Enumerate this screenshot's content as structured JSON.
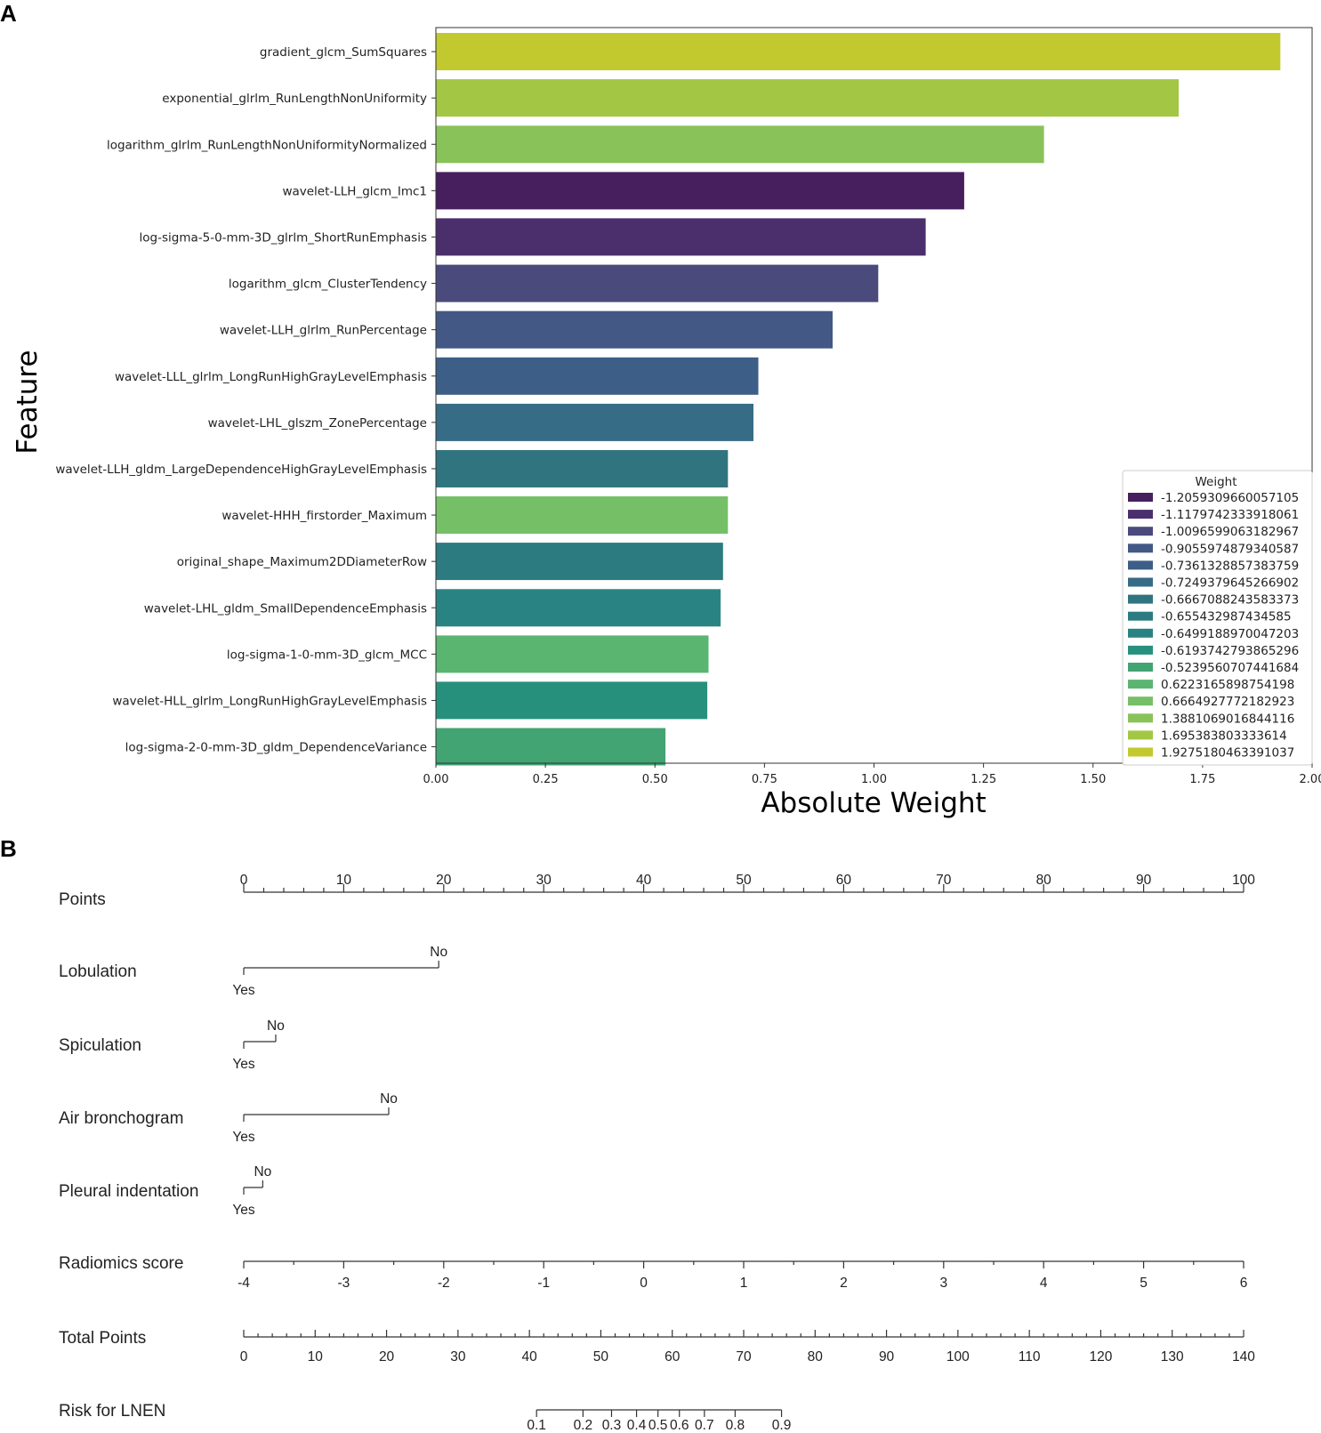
{
  "panel_a_letter": "A",
  "panel_b_letter": "B",
  "chart_data": [
    {
      "type": "bar",
      "orientation": "horizontal",
      "panel": "A",
      "xlabel": "Absolute Weight",
      "ylabel": "Feature",
      "xlim": [
        0,
        2.0
      ],
      "xticks": [
        "0.00",
        "0.25",
        "0.50",
        "0.75",
        "1.00",
        "1.25",
        "1.50",
        "1.75",
        "2.00"
      ],
      "xtick_values": [
        0,
        0.25,
        0.5,
        0.75,
        1.0,
        1.25,
        1.5,
        1.75,
        2.0
      ],
      "legend": {
        "title": "Weight",
        "placement": "lower-right"
      },
      "categories": [
        "gradient_glcm_SumSquares",
        "exponential_glrlm_RunLengthNonUniformity",
        "logarithm_glrlm_RunLengthNonUniformityNormalized",
        "wavelet-LLH_glcm_Imc1",
        "log-sigma-5-0-mm-3D_glrlm_ShortRunEmphasis",
        "logarithm_glcm_ClusterTendency",
        "wavelet-LLH_glrlm_RunPercentage",
        "wavelet-LLL_glrlm_LongRunHighGrayLevelEmphasis",
        "wavelet-LHL_glszm_ZonePercentage",
        "wavelet-LLH_gldm_LargeDependenceHighGrayLevelEmphasis",
        "wavelet-HHH_firstorder_Maximum",
        "original_shape_Maximum2DDiameterRow",
        "wavelet-LHL_gldm_SmallDependenceEmphasis",
        "log-sigma-1-0-mm-3D_glcm_MCC",
        "wavelet-HLL_glrlm_LongRunHighGrayLevelEmphasis",
        "log-sigma-2-0-mm-3D_gldm_DependenceVariance"
      ],
      "values": [
        1.9275,
        1.6954,
        1.3881,
        1.2059,
        1.118,
        1.0097,
        0.9056,
        0.7361,
        0.7249,
        0.6667,
        0.6665,
        0.6554,
        0.6499,
        0.6223,
        0.6194,
        0.524
      ],
      "weights": [
        1.9275180463391037,
        1.695383803333614,
        1.3881069016844116,
        -1.2059309660057105,
        -1.1179742333918061,
        -1.0096599063182967,
        -0.9055974879340587,
        -0.7361328857383759,
        -0.7249379645266902,
        -0.6667088243583373,
        0.6664927772182923,
        -0.655432987434585,
        -0.6499188970047203,
        0.6223165898754198,
        -0.6193742793865296,
        -0.5239560707441684
      ],
      "bar_colors": [
        "#c2c92f",
        "#a3c744",
        "#8ac25a",
        "#471f5e",
        "#4a2f6c",
        "#4a4a7d",
        "#445886",
        "#3d5e87",
        "#366c85",
        "#30747f",
        "#75c066",
        "#2b7b80",
        "#2a8383",
        "#5ab571",
        "#27907d",
        "#42a373"
      ],
      "legend_entries": [
        {
          "label": "-1.2059309660057105",
          "color": "#471f5e"
        },
        {
          "label": "-1.1179742333918061",
          "color": "#4a2f6c"
        },
        {
          "label": "-1.0096599063182967",
          "color": "#4a4a7d"
        },
        {
          "label": "-0.9055974879340587",
          "color": "#445886"
        },
        {
          "label": "-0.7361328857383759",
          "color": "#3d5e87"
        },
        {
          "label": "-0.7249379645266902",
          "color": "#366c85"
        },
        {
          "label": "-0.6667088243583373",
          "color": "#30747f"
        },
        {
          "label": "-0.655432987434585",
          "color": "#2b7b80"
        },
        {
          "label": "-0.6499188970047203",
          "color": "#2a8383"
        },
        {
          "label": "-0.6193742793865296",
          "color": "#27907d"
        },
        {
          "label": "-0.5239560707441684",
          "color": "#42a373"
        },
        {
          "label": "0.6223165898754198",
          "color": "#5ab571"
        },
        {
          "label": "0.6664927772182923",
          "color": "#75c066"
        },
        {
          "label": "1.3881069016844116",
          "color": "#8ac25a"
        },
        {
          "label": "1.695383803333614",
          "color": "#a3c744"
        },
        {
          "label": "1.9275180463391037",
          "color": "#c2c92f"
        }
      ]
    },
    {
      "type": "nomogram",
      "panel": "B",
      "points_axis": {
        "label": "Points",
        "min": 0,
        "max": 100,
        "major_ticks": [
          0,
          10,
          20,
          30,
          40,
          50,
          60,
          70,
          80,
          90,
          100
        ],
        "minor_step": 2
      },
      "variables": [
        {
          "name": "Lobulation",
          "levels": [
            {
              "label": "Yes",
              "points": 0
            },
            {
              "label": "No",
              "points": 19.5
            }
          ]
        },
        {
          "name": "Spiculation",
          "levels": [
            {
              "label": "Yes",
              "points": 0
            },
            {
              "label": "No",
              "points": 3.2
            }
          ]
        },
        {
          "name": "Air  bronchogram",
          "levels": [
            {
              "label": "Yes",
              "points": 0
            },
            {
              "label": "No",
              "points": 14.5
            }
          ]
        },
        {
          "name": "Pleural  indentation",
          "levels": [
            {
              "label": "Yes",
              "points": 0
            },
            {
              "label": "No",
              "points": 1.9
            }
          ]
        }
      ],
      "radiomics_score": {
        "label": "Radiomics  score",
        "min": -4,
        "max": 6,
        "ticks": [
          -4,
          -3,
          -2,
          -1,
          0,
          1,
          2,
          3,
          4,
          5,
          6
        ],
        "minor_step": 0.5
      },
      "total_points": {
        "label": "Total Points",
        "min": 0,
        "max": 140,
        "ticks": [
          0,
          10,
          20,
          30,
          40,
          50,
          60,
          70,
          80,
          90,
          100,
          110,
          120,
          130,
          140
        ],
        "minor_step": 2
      },
      "risk": {
        "label": "Risk for LNEN",
        "ticks": [
          {
            "label": "0.1",
            "total_points": 41
          },
          {
            "label": "0.2",
            "total_points": 47.5
          },
          {
            "label": "0.3",
            "total_points": 51.5
          },
          {
            "label": "0.4",
            "total_points": 55
          },
          {
            "label": "0.5",
            "total_points": 58
          },
          {
            "label": "0.6",
            "total_points": 61
          },
          {
            "label": "0.7",
            "total_points": 64.5
          },
          {
            "label": "0.8",
            "total_points": 68.8
          },
          {
            "label": "0.9",
            "total_points": 75.3
          }
        ]
      }
    }
  ]
}
